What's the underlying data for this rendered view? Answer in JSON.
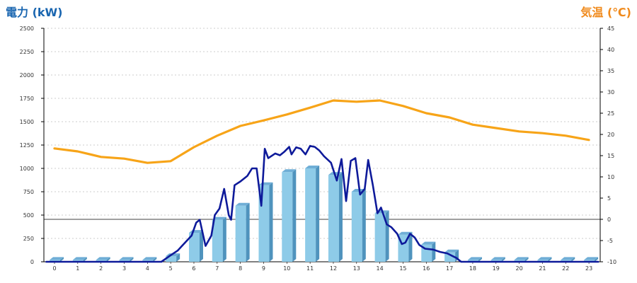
{
  "header": {
    "left_title": "電力 (kW)",
    "right_title": "気温 (℃)"
  },
  "colors": {
    "power_title": "#1a66b0",
    "temp_title": "#f08a1c",
    "power_line": "#0e1a9a",
    "bar_face": "#8ecbe8",
    "bar_side": "#4f93bd",
    "bar_top": "#6faed6",
    "temp_line": "#f7a418",
    "grid": "#bfbfbf"
  },
  "chart_data": {
    "type": "bar+line",
    "x_axis": {
      "ticks": [
        "0",
        "1",
        "2",
        "3",
        "4",
        "5",
        "6",
        "7",
        "8",
        "9",
        "10",
        "11",
        "12",
        "13",
        "14",
        "15",
        "16",
        "17",
        "18",
        "19",
        "20",
        "21",
        "22",
        "23"
      ]
    },
    "y_axis_left": {
      "ticks": [
        "0",
        "250",
        "500",
        "750",
        "1000",
        "1250",
        "1500",
        "1750",
        "2000",
        "2250",
        "2500"
      ],
      "range": [
        0,
        2500
      ]
    },
    "y_axis_right": {
      "ticks": [
        "-10",
        "-5",
        "0",
        "5",
        "10",
        "15",
        "20",
        "25",
        "30",
        "35",
        "40",
        "45"
      ],
      "range": [
        -10,
        45
      ],
      "reference_line": 0
    },
    "grid": "horizontal dashed",
    "bars": {
      "axis": "left",
      "values": [
        20,
        20,
        20,
        20,
        20,
        60,
        310,
        450,
        600,
        820,
        960,
        1000,
        930,
        750,
        520,
        290,
        185,
        100,
        20,
        20,
        20,
        20,
        20,
        20
      ]
    },
    "power_line": {
      "axis": "left",
      "points": [
        [
          -0.35,
          0
        ],
        [
          4.6,
          0
        ],
        [
          5,
          70
        ],
        [
          5.3,
          120
        ],
        [
          5.6,
          200
        ],
        [
          5.9,
          280
        ],
        [
          6.1,
          420
        ],
        [
          6.25,
          450
        ],
        [
          6.5,
          170
        ],
        [
          6.75,
          280
        ],
        [
          6.9,
          500
        ],
        [
          7.1,
          570
        ],
        [
          7.3,
          780
        ],
        [
          7.5,
          500
        ],
        [
          7.6,
          450
        ],
        [
          7.75,
          820
        ],
        [
          8.0,
          860
        ],
        [
          8.3,
          920
        ],
        [
          8.5,
          1000
        ],
        [
          8.7,
          1000
        ],
        [
          8.9,
          600
        ],
        [
          9.05,
          1210
        ],
        [
          9.2,
          1110
        ],
        [
          9.5,
          1160
        ],
        [
          9.7,
          1140
        ],
        [
          9.9,
          1180
        ],
        [
          10.1,
          1230
        ],
        [
          10.2,
          1150
        ],
        [
          10.4,
          1225
        ],
        [
          10.6,
          1210
        ],
        [
          10.8,
          1150
        ],
        [
          11.0,
          1240
        ],
        [
          11.2,
          1230
        ],
        [
          11.4,
          1190
        ],
        [
          11.6,
          1130
        ],
        [
          11.9,
          1060
        ],
        [
          12.15,
          870
        ],
        [
          12.35,
          1100
        ],
        [
          12.55,
          650
        ],
        [
          12.75,
          1080
        ],
        [
          12.95,
          1110
        ],
        [
          13.15,
          720
        ],
        [
          13.35,
          780
        ],
        [
          13.5,
          1090
        ],
        [
          13.7,
          820
        ],
        [
          13.9,
          520
        ],
        [
          14.05,
          580
        ],
        [
          14.3,
          400
        ],
        [
          14.5,
          370
        ],
        [
          14.75,
          300
        ],
        [
          14.95,
          190
        ],
        [
          15.1,
          205
        ],
        [
          15.3,
          300
        ],
        [
          15.5,
          260
        ],
        [
          15.7,
          180
        ],
        [
          15.95,
          140
        ],
        [
          16.3,
          130
        ],
        [
          16.6,
          105
        ],
        [
          16.9,
          90
        ],
        [
          17.1,
          65
        ],
        [
          17.3,
          40
        ],
        [
          17.5,
          0
        ],
        [
          23.4,
          0
        ]
      ]
    },
    "temperature_line": {
      "axis": "right",
      "points": [
        [
          0,
          16.7
        ],
        [
          1,
          16.0
        ],
        [
          2,
          14.7
        ],
        [
          3,
          14.3
        ],
        [
          4,
          13.3
        ],
        [
          5,
          13.7
        ],
        [
          6,
          17.0
        ],
        [
          7,
          19.7
        ],
        [
          8,
          22.0
        ],
        [
          9,
          23.3
        ],
        [
          10,
          24.7
        ],
        [
          11,
          26.3
        ],
        [
          12,
          28.0
        ],
        [
          13,
          27.7
        ],
        [
          14,
          28.0
        ],
        [
          15,
          26.7
        ],
        [
          16,
          25.0
        ],
        [
          17,
          24.0
        ],
        [
          18,
          22.3
        ],
        [
          19,
          21.5
        ],
        [
          20,
          20.7
        ],
        [
          21,
          20.3
        ],
        [
          22,
          19.7
        ],
        [
          23,
          18.7
        ]
      ]
    }
  }
}
